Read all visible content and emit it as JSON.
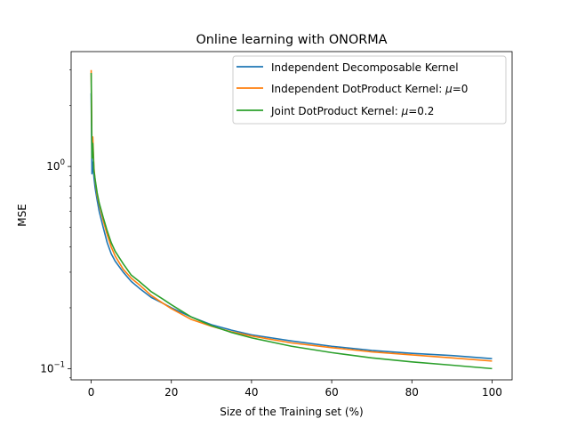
{
  "chart_data": {
    "type": "line",
    "title": "Online learning with ONORMA",
    "xlabel": "Size of the Training set (%)",
    "ylabel": "MSE",
    "yscale": "log",
    "xlim": [
      -5,
      105
    ],
    "ylim": [
      0.088,
      3.7
    ],
    "x_ticks": [
      0,
      20,
      40,
      60,
      80,
      100
    ],
    "x_tick_labels": [
      "0",
      "20",
      "40",
      "60",
      "80",
      "100"
    ],
    "y_major_ticks": [
      1,
      0.1
    ],
    "y_tick_labels": [
      {
        "base": "10",
        "exp": "0"
      },
      {
        "base": "10",
        "exp": "−1"
      }
    ],
    "grid": false,
    "legend_position": "top-right",
    "series": [
      {
        "name": "Independent Decomposable Kernel",
        "label_text": "Independent Decomposable Kernel",
        "color": "#1f77b4",
        "x": [
          0,
          0.2,
          0.4,
          0.7,
          1,
          1.5,
          2,
          3,
          4,
          5,
          6,
          8,
          10,
          12,
          15,
          18,
          20,
          25,
          30,
          35,
          40,
          50,
          60,
          70,
          80,
          90,
          100
        ],
        "y": [
          2.3,
          0.92,
          1.05,
          0.88,
          0.78,
          0.68,
          0.6,
          0.5,
          0.42,
          0.37,
          0.34,
          0.3,
          0.27,
          0.25,
          0.225,
          0.21,
          0.2,
          0.18,
          0.165,
          0.155,
          0.147,
          0.137,
          0.129,
          0.123,
          0.119,
          0.116,
          0.112
        ]
      },
      {
        "name": "Independent DotProduct Kernel: mu=0",
        "label_text": "Independent DotProduct Kernel: ",
        "label_mu": "μ",
        "label_value": "=0",
        "color": "#ff7f0e",
        "x": [
          0,
          0.2,
          0.4,
          0.7,
          1,
          1.5,
          2,
          3,
          4,
          5,
          6,
          8,
          10,
          12,
          15,
          18,
          20,
          25,
          30,
          35,
          40,
          50,
          60,
          70,
          80,
          90,
          100
        ],
        "y": [
          3.0,
          1.2,
          1.4,
          0.98,
          0.85,
          0.72,
          0.65,
          0.54,
          0.46,
          0.4,
          0.36,
          0.31,
          0.28,
          0.26,
          0.23,
          0.21,
          0.198,
          0.175,
          0.162,
          0.152,
          0.145,
          0.134,
          0.127,
          0.121,
          0.117,
          0.113,
          0.109
        ]
      },
      {
        "name": "Joint DotProduct Kernel: mu=0.2",
        "label_text": "Joint DotProduct Kernel: ",
        "label_mu": "μ",
        "label_value": "=0.2",
        "color": "#2ca02c",
        "x": [
          0,
          0.2,
          0.4,
          0.7,
          1,
          1.5,
          2,
          3,
          4,
          5,
          6,
          8,
          10,
          12,
          15,
          18,
          20,
          25,
          30,
          35,
          40,
          50,
          60,
          70,
          80,
          90,
          100
        ],
        "y": [
          2.9,
          1.1,
          1.3,
          0.95,
          0.86,
          0.74,
          0.66,
          0.56,
          0.48,
          0.42,
          0.38,
          0.33,
          0.29,
          0.27,
          0.24,
          0.22,
          0.207,
          0.18,
          0.163,
          0.151,
          0.142,
          0.129,
          0.12,
          0.113,
          0.108,
          0.104,
          0.1
        ]
      }
    ]
  }
}
